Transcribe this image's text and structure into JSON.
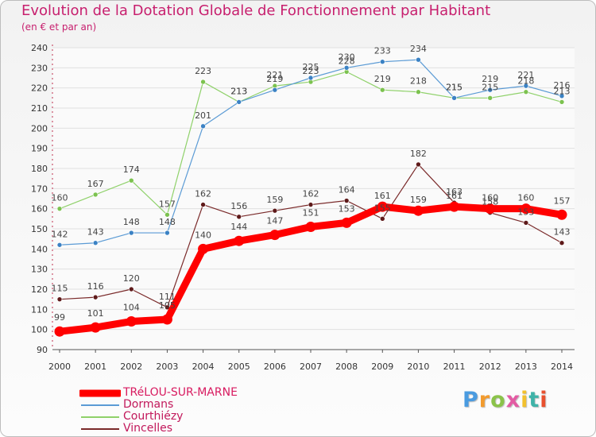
{
  "title": "Evolution de la Dotation Globale de Fonctionnement par Habitant",
  "subtitle": "(en € et par an)",
  "logo": {
    "text": "Proxiti",
    "colors": [
      "#4a9be0",
      "#f29b2e",
      "#8bc34a",
      "#e35ba3",
      "#f2c12e",
      "#3fb3a8",
      "#e8502e"
    ]
  },
  "legend": [
    {
      "label": "TRéLOU-SUR-MARNE",
      "color": "#ff0000"
    },
    {
      "label": "Dormans",
      "color": "#5b9bd5"
    },
    {
      "label": "Courthiézy",
      "color": "#8fd16a"
    },
    {
      "label": "Vincelles",
      "color": "#7a2a2a"
    }
  ],
  "chart_data": {
    "type": "line",
    "title": "Evolution de la Dotation Globale de Fonctionnement par Habitant",
    "subtitle": "(en € et par an)",
    "xlabel": "",
    "ylabel": "",
    "ylim": [
      90,
      240
    ],
    "yticks": [
      90,
      100,
      110,
      120,
      130,
      140,
      150,
      160,
      170,
      180,
      190,
      200,
      210,
      220,
      230,
      240
    ],
    "categories": [
      "2000",
      "2001",
      "2002",
      "2003",
      "2004",
      "2005",
      "2006",
      "2007",
      "2008",
      "2009",
      "2010",
      "2011",
      "2012",
      "2013",
      "2014"
    ],
    "grid": true,
    "series": [
      {
        "name": "Courthiézy",
        "color": "#8fd16a",
        "marker": "#7cc24f",
        "values": [
          160,
          167,
          174,
          157,
          223,
          213,
          221,
          223,
          228,
          219,
          218,
          215,
          215,
          218,
          213
        ]
      },
      {
        "name": "Dormans",
        "color": "#5b9bd5",
        "marker": "#3b82c4",
        "values": [
          142,
          143,
          148,
          148,
          201,
          213,
          219,
          225,
          230,
          233,
          234,
          215,
          219,
          221,
          216
        ]
      },
      {
        "name": "Vincelles",
        "color": "#7a2a2a",
        "marker": "#5e1a1a",
        "values": [
          115,
          116,
          120,
          111,
          162,
          156,
          159,
          162,
          164,
          155,
          182,
          163,
          158,
          153,
          143
        ]
      },
      {
        "name": "TRéLOU-SUR-MARNE",
        "color": "#ff0000",
        "marker": "#ff0000",
        "values": [
          99,
          101,
          104,
          105,
          140,
          144,
          147,
          151,
          153,
          161,
          159,
          161,
          160,
          160,
          157
        ]
      }
    ],
    "label_rows": [
      {
        "series": "Courthiézy",
        "position": "above",
        "labels": [
          "160",
          "167",
          "174",
          "157",
          "223",
          "213",
          "221",
          "223",
          "228",
          "219",
          "218",
          "215",
          "215",
          "218",
          "213"
        ]
      },
      {
        "series": "Dormans",
        "position": "above",
        "labels": [
          "142",
          "143",
          "148",
          "148",
          "201",
          "213",
          "219",
          "225",
          "230",
          "233",
          "234",
          "215",
          "219",
          "221",
          "216"
        ]
      },
      {
        "series": "Vincelles",
        "position": "above",
        "labels": [
          "115",
          "116",
          "120",
          "111",
          "162",
          "156",
          "159",
          "162",
          "164",
          "155",
          "182",
          "163",
          "158",
          "153",
          "143"
        ]
      },
      {
        "series": "TRéLOU-SUR-MARNE",
        "position": "mixed",
        "labels": [
          "99",
          "101",
          "104",
          "105",
          "140",
          "144",
          "147",
          "151",
          "153",
          "161",
          "159",
          "161",
          "160",
          "160",
          "157"
        ]
      }
    ]
  }
}
